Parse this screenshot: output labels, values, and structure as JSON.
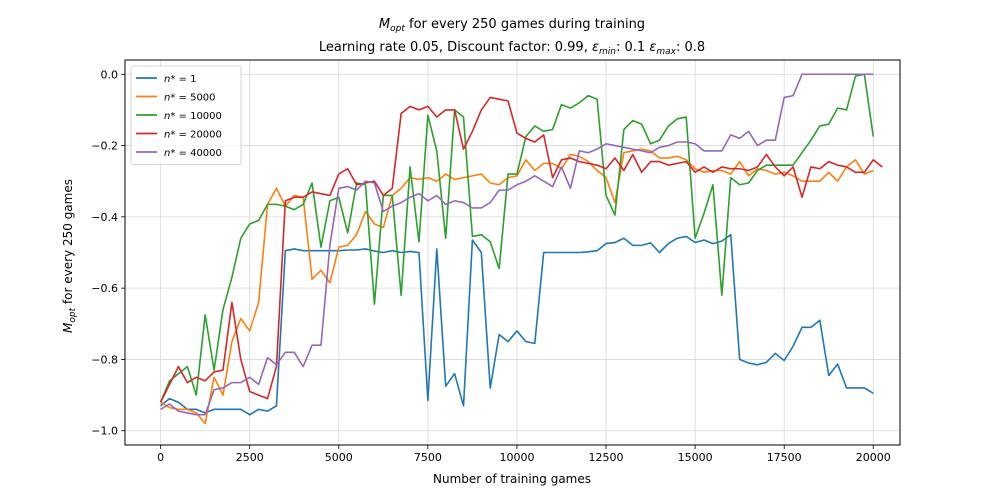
{
  "chart_data": {
    "type": "line",
    "title_main": "M",
    "title_main_sub": "opt",
    "title_main_rest": " for every 250 games during training",
    "title_line2_a": "Learning rate 0.05, Discount factor: 0.99, ",
    "title_line2_eps": "ε",
    "title_line2_min": "min",
    "title_line2_b": ": 0.1 ",
    "title_line2_max": "max",
    "title_line2_c": ": 0.8",
    "xlabel": "Number of training games",
    "ylabel_main": "M",
    "ylabel_sub": "opt",
    "ylabel_rest": " for every 250 games",
    "xlim": [
      -1000,
      20750
    ],
    "ylim": [
      -1.04,
      0.04
    ],
    "xticks": [
      0,
      2500,
      5000,
      7500,
      10000,
      12500,
      15000,
      17500,
      20000
    ],
    "xtick_labels": [
      "0",
      "2500",
      "5000",
      "7500",
      "10000",
      "12500",
      "15000",
      "17500",
      "20000"
    ],
    "yticks": [
      -1.0,
      -0.8,
      -0.6,
      -0.4,
      -0.2,
      0.0
    ],
    "ytick_labels": [
      "−1.0",
      "−0.8",
      "−0.6",
      "−0.4",
      "−0.2",
      "0.0"
    ],
    "grid": true,
    "legend_position": "top-left",
    "x_start": 0,
    "x_step": 250,
    "series": [
      {
        "name": "n* = 1",
        "legend_prefix": "n",
        "legend_suffix": "* = 1",
        "color": "#1f77b4",
        "values": [
          -0.93,
          -0.91,
          -0.92,
          -0.94,
          -0.94,
          -0.95,
          -0.94,
          -0.94,
          -0.94,
          -0.94,
          -0.955,
          -0.94,
          -0.945,
          -0.93,
          -0.495,
          -0.49,
          -0.495,
          -0.495,
          -0.495,
          -0.495,
          -0.495,
          -0.493,
          -0.493,
          -0.49,
          -0.496,
          -0.5,
          -0.495,
          -0.5,
          -0.497,
          -0.5,
          -0.915,
          -0.49,
          -0.875,
          -0.84,
          -0.93,
          -0.465,
          -0.5,
          -0.88,
          -0.73,
          -0.75,
          -0.72,
          -0.75,
          -0.755,
          -0.5,
          -0.5,
          -0.5,
          -0.5,
          -0.5,
          -0.498,
          -0.495,
          -0.475,
          -0.472,
          -0.46,
          -0.48,
          -0.48,
          -0.473,
          -0.5,
          -0.475,
          -0.46,
          -0.455,
          -0.472,
          -0.465,
          -0.475,
          -0.468,
          -0.45,
          -0.8,
          -0.81,
          -0.815,
          -0.808,
          -0.783,
          -0.803,
          -0.763,
          -0.71,
          -0.71,
          -0.69,
          -0.845,
          -0.813,
          -0.88,
          -0.88,
          -0.88,
          -0.895
        ]
      },
      {
        "name": "n* = 5000",
        "legend_prefix": "n",
        "legend_suffix": "* = 5000",
        "color": "#ff7f0e",
        "values": [
          -0.92,
          -0.935,
          -0.94,
          -0.94,
          -0.95,
          -0.98,
          -0.85,
          -0.9,
          -0.75,
          -0.685,
          -0.72,
          -0.64,
          -0.365,
          -0.32,
          -0.37,
          -0.34,
          -0.345,
          -0.575,
          -0.55,
          -0.585,
          -0.485,
          -0.48,
          -0.45,
          -0.385,
          -0.42,
          -0.43,
          -0.34,
          -0.32,
          -0.29,
          -0.295,
          -0.29,
          -0.3,
          -0.28,
          -0.295,
          -0.29,
          -0.285,
          -0.28,
          -0.305,
          -0.31,
          -0.29,
          -0.285,
          -0.24,
          -0.27,
          -0.25,
          -0.25,
          -0.265,
          -0.225,
          -0.23,
          -0.245,
          -0.27,
          -0.29,
          -0.36,
          -0.22,
          -0.215,
          -0.21,
          -0.215,
          -0.235,
          -0.235,
          -0.23,
          -0.24,
          -0.265,
          -0.275,
          -0.27,
          -0.27,
          -0.28,
          -0.245,
          -0.285,
          -0.265,
          -0.27,
          -0.28,
          -0.275,
          -0.285,
          -0.3,
          -0.3,
          -0.3,
          -0.275,
          -0.3,
          -0.26,
          -0.24,
          -0.28,
          -0.27
        ]
      },
      {
        "name": "n* = 10000",
        "legend_prefix": "n",
        "legend_suffix": "* = 10000",
        "color": "#2ca02c",
        "values": [
          -0.92,
          -0.86,
          -0.84,
          -0.82,
          -0.9,
          -0.675,
          -0.83,
          -0.66,
          -0.57,
          -0.46,
          -0.42,
          -0.41,
          -0.365,
          -0.365,
          -0.37,
          -0.38,
          -0.365,
          -0.305,
          -0.485,
          -0.355,
          -0.345,
          -0.445,
          -0.305,
          -0.31,
          -0.645,
          -0.34,
          -0.34,
          -0.62,
          -0.26,
          -0.47,
          -0.115,
          -0.215,
          -0.46,
          -0.1,
          -0.12,
          -0.455,
          -0.45,
          -0.47,
          -0.545,
          -0.28,
          -0.28,
          -0.175,
          -0.145,
          -0.16,
          -0.155,
          -0.085,
          -0.095,
          -0.08,
          -0.06,
          -0.07,
          -0.34,
          -0.395,
          -0.155,
          -0.13,
          -0.14,
          -0.195,
          -0.185,
          -0.145,
          -0.125,
          -0.12,
          -0.46,
          -0.39,
          -0.31,
          -0.62,
          -0.29,
          -0.31,
          -0.305,
          -0.27,
          -0.255,
          -0.255,
          -0.255,
          -0.255,
          -0.22,
          -0.185,
          -0.145,
          -0.14,
          -0.095,
          -0.1,
          -0.005,
          0.0,
          -0.175
        ]
      },
      {
        "name": "n* = 20000",
        "legend_prefix": "n",
        "legend_suffix": "* = 20000",
        "color": "#d62728",
        "values": [
          -0.92,
          -0.87,
          -0.82,
          -0.865,
          -0.85,
          -0.86,
          -0.835,
          -0.83,
          -0.64,
          -0.8,
          -0.89,
          -0.9,
          -0.91,
          -0.82,
          -0.355,
          -0.345,
          -0.345,
          -0.33,
          -0.335,
          -0.34,
          -0.28,
          -0.265,
          -0.31,
          -0.305,
          -0.3,
          -0.34,
          -0.32,
          -0.11,
          -0.09,
          -0.1,
          -0.09,
          -0.12,
          -0.1,
          -0.1,
          -0.21,
          -0.16,
          -0.1,
          -0.065,
          -0.07,
          -0.075,
          -0.165,
          -0.18,
          -0.19,
          -0.17,
          -0.29,
          -0.24,
          -0.235,
          -0.245,
          -0.25,
          -0.255,
          -0.265,
          -0.235,
          -0.27,
          -0.225,
          -0.275,
          -0.245,
          -0.245,
          -0.255,
          -0.25,
          -0.245,
          -0.275,
          -0.26,
          -0.275,
          -0.26,
          -0.265,
          -0.265,
          -0.27,
          -0.26,
          -0.225,
          -0.26,
          -0.285,
          -0.26,
          -0.345,
          -0.26,
          -0.265,
          -0.245,
          -0.255,
          -0.26,
          -0.275,
          -0.275,
          -0.24,
          -0.26
        ]
      },
      {
        "name": "n* = 40000",
        "legend_prefix": "n",
        "legend_suffix": "* = 40000",
        "color": "#9467bd",
        "values": [
          -0.94,
          -0.925,
          -0.945,
          -0.95,
          -0.955,
          -0.955,
          -0.885,
          -0.88,
          -0.865,
          -0.865,
          -0.85,
          -0.87,
          -0.795,
          -0.815,
          -0.78,
          -0.78,
          -0.82,
          -0.76,
          -0.76,
          -0.48,
          -0.32,
          -0.315,
          -0.325,
          -0.3,
          -0.305,
          -0.385,
          -0.37,
          -0.36,
          -0.345,
          -0.335,
          -0.355,
          -0.34,
          -0.365,
          -0.355,
          -0.36,
          -0.375,
          -0.375,
          -0.36,
          -0.325,
          -0.325,
          -0.31,
          -0.3,
          -0.285,
          -0.3,
          -0.315,
          -0.26,
          -0.32,
          -0.215,
          -0.22,
          -0.21,
          -0.195,
          -0.2,
          -0.205,
          -0.21,
          -0.215,
          -0.22,
          -0.205,
          -0.2,
          -0.19,
          -0.19,
          -0.195,
          -0.215,
          -0.215,
          -0.215,
          -0.17,
          -0.18,
          -0.16,
          -0.2,
          -0.185,
          -0.185,
          -0.065,
          -0.06,
          -0.0,
          0.0,
          0.0,
          0.0,
          0.0,
          0.0,
          0.0,
          0.0,
          0.0
        ]
      }
    ]
  }
}
